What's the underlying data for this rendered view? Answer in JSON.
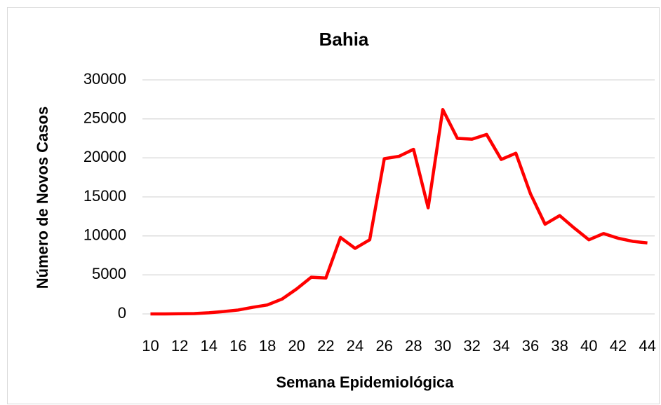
{
  "chart_data": {
    "type": "line",
    "title": "Bahia",
    "x_label": "Semana Epidemiológica",
    "y_label": "Número de Novos Casos",
    "x": [
      10,
      11,
      12,
      13,
      14,
      15,
      16,
      17,
      18,
      19,
      20,
      21,
      22,
      23,
      24,
      25,
      26,
      27,
      28,
      29,
      30,
      31,
      32,
      33,
      34,
      35,
      36,
      37,
      38,
      39,
      40,
      41,
      42,
      43,
      44
    ],
    "series": [
      {
        "name": "Bahia",
        "color": "#ff0000",
        "values": [
          0,
          0,
          20,
          50,
          150,
          300,
          500,
          850,
          1150,
          1900,
          3200,
          4700,
          4600,
          9800,
          8400,
          9500,
          19900,
          20200,
          21100,
          13600,
          26200,
          22500,
          22400,
          23000,
          19800,
          20600,
          15400,
          11500,
          12600,
          11000,
          9500,
          10300,
          9700,
          9300,
          9100
        ]
      }
    ],
    "xlim": [
      9.45,
      44.5
    ],
    "xticks": [
      10,
      12,
      14,
      16,
      18,
      20,
      22,
      24,
      26,
      28,
      30,
      32,
      34,
      36,
      38,
      40,
      42,
      44
    ],
    "ylim": [
      0,
      30000
    ],
    "yticks": [
      0,
      5000,
      10000,
      15000,
      20000,
      25000,
      30000
    ],
    "grid": true
  }
}
